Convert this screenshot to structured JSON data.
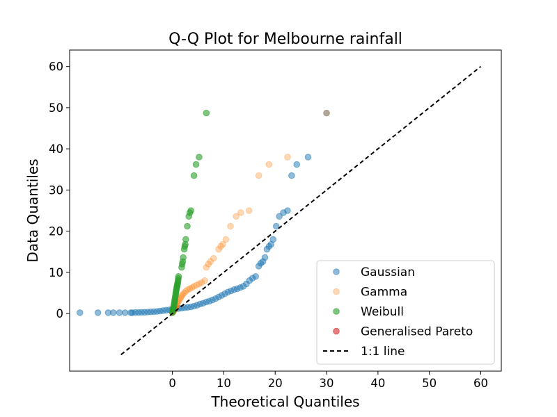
{
  "chart_data": {
    "type": "scatter",
    "title": "Q-Q Plot for Melbourne rainfall",
    "xlabel": "Theoretical Quantiles",
    "ylabel": "Data Quantiles",
    "xlim": [
      -20,
      64
    ],
    "ylim": [
      -14,
      64
    ],
    "x_ticks": [
      0,
      10,
      20,
      30,
      40,
      50,
      60
    ],
    "x_tick_labels": [
      "0",
      "10",
      "20",
      "30",
      "40",
      "50",
      "60"
    ],
    "y_ticks": [
      0,
      10,
      20,
      30,
      40,
      50,
      60
    ],
    "y_tick_labels": [
      "0",
      "10",
      "20",
      "30",
      "40",
      "50",
      "60"
    ],
    "grid": false,
    "legend_position": "bottom-right",
    "series": [
      {
        "name": "Gaussian",
        "color": "#1f77b4",
        "alpha": 0.5,
        "points": [
          [
            -18,
            0.2
          ],
          [
            -14.5,
            0.2
          ],
          [
            -12.5,
            0.2
          ],
          [
            -11.5,
            0.2
          ],
          [
            -10.3,
            0.2
          ],
          [
            -9.2,
            0.2
          ],
          [
            -8.1,
            0.2
          ],
          [
            -7.8,
            0.2
          ],
          [
            -7.2,
            0.25
          ],
          [
            -6.6,
            0.25
          ],
          [
            -6,
            0.3
          ],
          [
            -5.4,
            0.3
          ],
          [
            -4.8,
            0.35
          ],
          [
            -4.2,
            0.4
          ],
          [
            -3.6,
            0.45
          ],
          [
            -3,
            0.5
          ],
          [
            -2.4,
            0.6
          ],
          [
            -1.8,
            0.7
          ],
          [
            -1.2,
            0.8
          ],
          [
            -0.6,
            0.9
          ],
          [
            0,
            1.0
          ],
          [
            0.6,
            1.1
          ],
          [
            1.2,
            1.2
          ],
          [
            1.8,
            1.3
          ],
          [
            2.4,
            1.4
          ],
          [
            3,
            1.5
          ],
          [
            3.6,
            1.6
          ],
          [
            4.2,
            1.8
          ],
          [
            4.8,
            2.0
          ],
          [
            5.4,
            2.3
          ],
          [
            6,
            2.5
          ],
          [
            6.6,
            2.8
          ],
          [
            7.2,
            3.0
          ],
          [
            7.8,
            3.3
          ],
          [
            8.4,
            3.6
          ],
          [
            9,
            4.0
          ],
          [
            9.6,
            4.4
          ],
          [
            10.2,
            4.8
          ],
          [
            10.8,
            5.2
          ],
          [
            11.4,
            5.5
          ],
          [
            12,
            5.8
          ],
          [
            12.6,
            6.0
          ],
          [
            13.2,
            6.3
          ],
          [
            13.8,
            6.6
          ],
          [
            14.4,
            7.2
          ],
          [
            15,
            8.0
          ],
          [
            15.6,
            8.6
          ],
          [
            16.2,
            9.0
          ],
          [
            16.8,
            11.5
          ],
          [
            17.2,
            12.2
          ],
          [
            17.6,
            12.6
          ],
          [
            18,
            13.6
          ],
          [
            18.4,
            15.6
          ],
          [
            18.8,
            16.3
          ],
          [
            19.2,
            16.8
          ],
          [
            19.6,
            18.0
          ],
          [
            20.2,
            21.2
          ],
          [
            20.8,
            23.6
          ],
          [
            21.6,
            24.5
          ],
          [
            22.4,
            25.0
          ],
          [
            23.2,
            33.5
          ],
          [
            24.2,
            36.2
          ],
          [
            26.4,
            38.0
          ],
          [
            30,
            48.7
          ]
        ]
      },
      {
        "name": "Gamma",
        "color": "#ff7f0e",
        "alpha": 0.3,
        "points": [
          [
            0,
            0.2
          ],
          [
            0.1,
            0.3
          ],
          [
            0.2,
            0.5
          ],
          [
            0.3,
            0.7
          ],
          [
            0.4,
            0.9
          ],
          [
            0.5,
            1.1
          ],
          [
            0.6,
            1.4
          ],
          [
            0.7,
            1.7
          ],
          [
            0.8,
            2.0
          ],
          [
            0.9,
            2.3
          ],
          [
            1.0,
            2.6
          ],
          [
            1.2,
            3.0
          ],
          [
            1.4,
            3.4
          ],
          [
            1.6,
            3.8
          ],
          [
            1.8,
            4.2
          ],
          [
            2.0,
            4.6
          ],
          [
            2.3,
            5.0
          ],
          [
            2.6,
            5.4
          ],
          [
            3.0,
            5.8
          ],
          [
            3.4,
            6.0
          ],
          [
            3.8,
            6.3
          ],
          [
            4.2,
            6.6
          ],
          [
            4.7,
            6.9
          ],
          [
            5.2,
            7.2
          ],
          [
            5.7,
            7.5
          ],
          [
            6.3,
            8.0
          ],
          [
            6.6,
            11.2
          ],
          [
            7.0,
            12.0
          ],
          [
            7.4,
            12.6
          ],
          [
            8.0,
            13.4
          ],
          [
            9.0,
            15.6
          ],
          [
            9.4,
            16.3
          ],
          [
            9.8,
            16.8
          ],
          [
            10.4,
            18.0
          ],
          [
            11.3,
            21.2
          ],
          [
            12.4,
            23.6
          ],
          [
            13.3,
            24.5
          ],
          [
            14.9,
            25.0
          ],
          [
            16.8,
            33.5
          ],
          [
            18.8,
            36.2
          ],
          [
            22.4,
            38.0
          ],
          [
            30,
            48.7
          ]
        ]
      },
      {
        "name": "Weibull",
        "color": "#2ca02c",
        "alpha": 0.6,
        "points": [
          [
            0,
            0.2
          ],
          [
            0.05,
            0.5
          ],
          [
            0.1,
            0.8
          ],
          [
            0.15,
            1.1
          ],
          [
            0.2,
            1.4
          ],
          [
            0.25,
            1.7
          ],
          [
            0.3,
            2.0
          ],
          [
            0.35,
            2.4
          ],
          [
            0.4,
            2.8
          ],
          [
            0.45,
            3.2
          ],
          [
            0.5,
            3.6
          ],
          [
            0.55,
            4.0
          ],
          [
            0.6,
            4.4
          ],
          [
            0.65,
            4.8
          ],
          [
            0.7,
            5.2
          ],
          [
            0.75,
            5.6
          ],
          [
            0.8,
            6.0
          ],
          [
            0.85,
            6.3
          ],
          [
            0.9,
            6.6
          ],
          [
            0.95,
            6.9
          ],
          [
            1.0,
            7.2
          ],
          [
            1.05,
            7.5
          ],
          [
            1.1,
            8.0
          ],
          [
            1.15,
            8.5
          ],
          [
            1.2,
            9.0
          ],
          [
            1.8,
            11.2
          ],
          [
            1.9,
            12.0
          ],
          [
            2.0,
            12.6
          ],
          [
            2.1,
            13.6
          ],
          [
            2.3,
            15.6
          ],
          [
            2.4,
            16.3
          ],
          [
            2.5,
            16.8
          ],
          [
            2.6,
            18.0
          ],
          [
            2.9,
            21.2
          ],
          [
            3.2,
            23.6
          ],
          [
            3.4,
            24.5
          ],
          [
            3.6,
            25.0
          ],
          [
            4.2,
            33.5
          ],
          [
            4.6,
            36.2
          ],
          [
            5.2,
            38.0
          ],
          [
            6.6,
            48.7
          ]
        ]
      },
      {
        "name": "Generalised Pareto",
        "color": "#d62728",
        "alpha": 0.6,
        "points": []
      }
    ],
    "reference_line": {
      "name": "1:1 line",
      "color": "#000000",
      "style": "dashed",
      "from": [
        -10,
        -10
      ],
      "to": [
        60,
        60
      ]
    }
  }
}
